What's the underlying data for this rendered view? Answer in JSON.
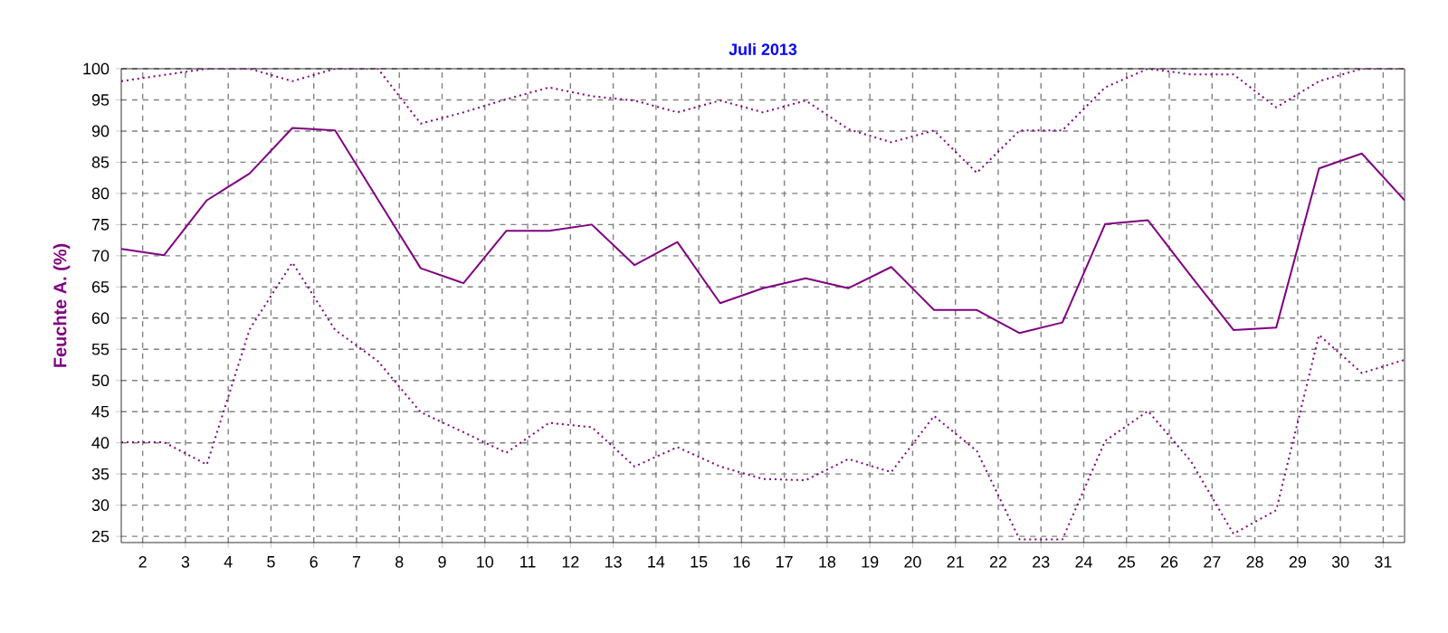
{
  "chart_data": {
    "type": "line",
    "title": "Juli 2013",
    "ylabel": "Feuchte A.  (%)",
    "x": [
      1.5,
      2.5,
      3.5,
      4.5,
      5.5,
      6.5,
      7.5,
      8.5,
      9.5,
      10.5,
      11.5,
      12.5,
      13.5,
      14.5,
      15.5,
      16.5,
      17.5,
      18.5,
      19.5,
      20.5,
      21.5,
      22.5,
      23.5,
      24.5,
      25.5,
      26.5,
      27.5,
      28.5,
      29.5,
      30.5,
      31.5
    ],
    "series": [
      {
        "color": "#800080",
        "line_style": "dotted",
        "values": [
          98,
          99,
          100,
          100,
          98,
          100,
          100,
          91.2,
          93,
          95.1,
          97,
          95.6,
          94.9,
          93,
          94.9,
          93,
          94.9,
          90.3,
          88.2,
          90.1,
          83.3,
          90.1,
          90.1,
          97,
          100,
          99.1,
          99.1,
          93.8,
          98,
          100,
          100
        ]
      },
      {
        "color": "#800080",
        "line_style": "solid",
        "values": [
          71.1,
          70.1,
          78.9,
          83.2,
          90.5,
          90.1,
          79,
          68,
          65.6,
          74,
          74,
          75,
          68.5,
          72.2,
          62.4,
          64.8,
          66.4,
          64.8,
          68.2,
          61.3,
          61.3,
          57.6,
          59.3,
          75.1,
          75.7,
          66.8,
          58.1,
          58.5,
          84,
          86.4,
          78.9
        ]
      },
      {
        "color": "#800080",
        "line_style": "dotted",
        "values": [
          40.1,
          40.1,
          36.5,
          58.2,
          68.9,
          58.1,
          53.1,
          44.9,
          41.7,
          38.4,
          43.2,
          42.5,
          36.2,
          39.3,
          36.2,
          34.2,
          34,
          37.4,
          35.3,
          44.3,
          38.7,
          24.5,
          24.5,
          40.3,
          45.1,
          37.1,
          25.4,
          29.2,
          57.3,
          51.2,
          53.3
        ]
      }
    ],
    "xlim": [
      1.5,
      31.5
    ],
    "ylim": [
      24,
      100
    ],
    "xticks": [
      2,
      3,
      4,
      5,
      6,
      7,
      8,
      9,
      10,
      11,
      12,
      13,
      14,
      15,
      16,
      17,
      18,
      19,
      20,
      21,
      22,
      23,
      24,
      25,
      26,
      27,
      28,
      29,
      30,
      31
    ],
    "yticks": [
      25,
      30,
      35,
      40,
      45,
      50,
      55,
      60,
      65,
      70,
      75,
      80,
      85,
      90,
      95,
      100
    ],
    "grid": true,
    "marker": "none"
  }
}
